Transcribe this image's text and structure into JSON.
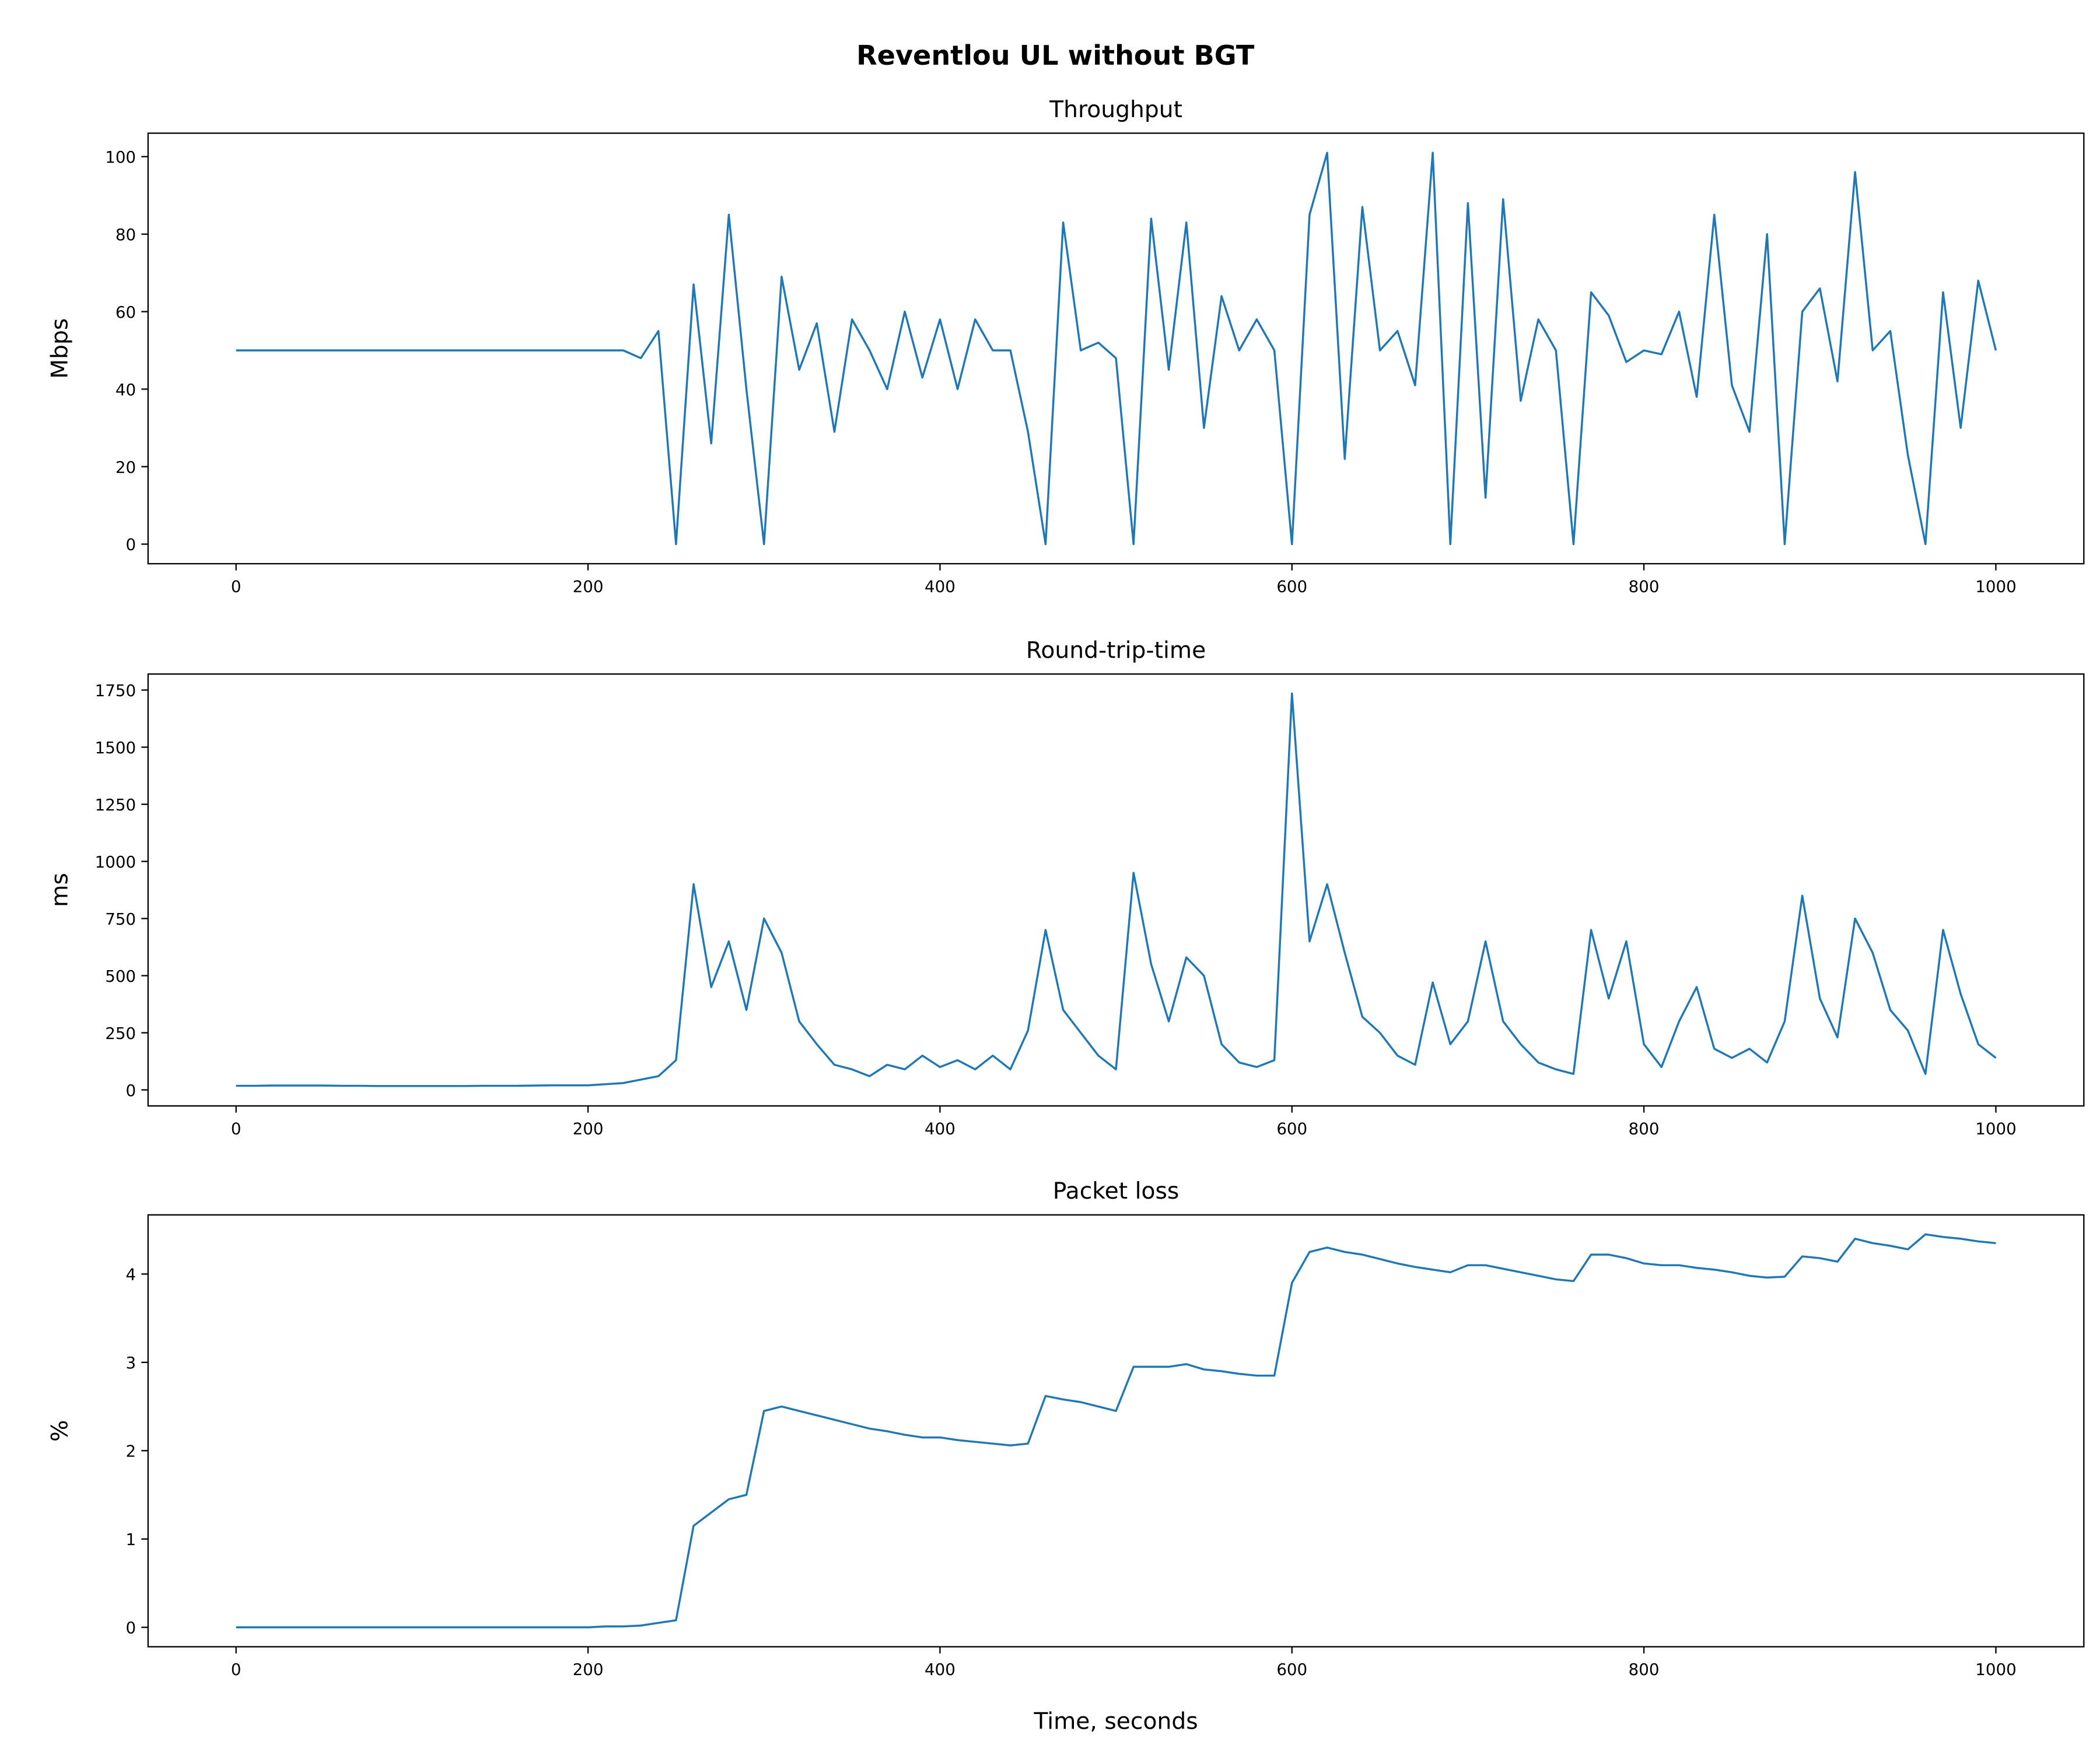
{
  "title": "Reventlou UL without BGT",
  "chart_data": [
    {
      "type": "line",
      "title": "Throughput",
      "ylabel": "Mbps",
      "x": [
        0,
        10,
        20,
        30,
        40,
        50,
        60,
        70,
        80,
        90,
        100,
        110,
        120,
        130,
        140,
        150,
        160,
        170,
        180,
        190,
        200,
        210,
        220,
        230,
        240,
        250,
        260,
        270,
        280,
        290,
        300,
        310,
        320,
        330,
        340,
        350,
        360,
        370,
        380,
        390,
        400,
        410,
        420,
        430,
        440,
        450,
        460,
        470,
        480,
        490,
        500,
        510,
        520,
        530,
        540,
        550,
        560,
        570,
        580,
        590,
        600,
        610,
        620,
        630,
        640,
        650,
        660,
        670,
        680,
        690,
        700,
        710,
        720,
        730,
        740,
        750,
        760,
        770,
        780,
        790,
        800,
        810,
        820,
        830,
        840,
        850,
        860,
        870,
        880,
        890,
        900,
        910,
        920,
        930,
        940,
        950,
        960,
        970,
        980,
        990,
        1000
      ],
      "series": [
        {
          "name": "Throughput",
          "color": "#1f77b4",
          "values": [
            50,
            50,
            50,
            50,
            50,
            50,
            50,
            50,
            50,
            50,
            50,
            50,
            50,
            50,
            50,
            50,
            50,
            50,
            50,
            50,
            50,
            50,
            50,
            48,
            55,
            0,
            67,
            26,
            85,
            40,
            0,
            69,
            45,
            57,
            29,
            58,
            50,
            40,
            60,
            43,
            58,
            40,
            58,
            50,
            50,
            29,
            0,
            83,
            50,
            52,
            48,
            0,
            84,
            45,
            83,
            30,
            64,
            50,
            58,
            50,
            0,
            85,
            101,
            22,
            87,
            50,
            55,
            41,
            101,
            0,
            88,
            12,
            89,
            37,
            58,
            50,
            0,
            65,
            59,
            47,
            50,
            49,
            60,
            38,
            85,
            41,
            29,
            80,
            0,
            60,
            66,
            42,
            96,
            50,
            55,
            23,
            0,
            65,
            30,
            68,
            50
          ]
        }
      ],
      "xlim": [
        -50,
        1050
      ],
      "ylim": [
        -5.05,
        106.05
      ],
      "xticks": [
        0,
        200,
        400,
        600,
        800,
        1000
      ],
      "yticks": [
        0,
        20,
        40,
        60,
        80,
        100
      ]
    },
    {
      "type": "line",
      "title": "Round-trip-time",
      "ylabel": "ms",
      "x": [
        0,
        10,
        20,
        30,
        40,
        50,
        60,
        70,
        80,
        90,
        100,
        110,
        120,
        130,
        140,
        150,
        160,
        170,
        180,
        190,
        200,
        210,
        220,
        230,
        240,
        250,
        260,
        270,
        280,
        290,
        300,
        310,
        320,
        330,
        340,
        350,
        360,
        370,
        380,
        390,
        400,
        410,
        420,
        430,
        440,
        450,
        460,
        470,
        480,
        490,
        500,
        510,
        520,
        530,
        540,
        550,
        560,
        570,
        580,
        590,
        600,
        610,
        620,
        630,
        640,
        650,
        660,
        670,
        680,
        690,
        700,
        710,
        720,
        730,
        740,
        750,
        760,
        770,
        780,
        790,
        800,
        810,
        820,
        830,
        840,
        850,
        860,
        870,
        880,
        890,
        900,
        910,
        920,
        930,
        940,
        950,
        960,
        970,
        980,
        990,
        1000
      ],
      "series": [
        {
          "name": "Round-trip-time",
          "color": "#1f77b4",
          "values": [
            18,
            18,
            19,
            19,
            19,
            19,
            18,
            18,
            17,
            17,
            17,
            17,
            17,
            17,
            18,
            18,
            18,
            19,
            20,
            20,
            20,
            25,
            30,
            45,
            60,
            130,
            900,
            450,
            650,
            350,
            750,
            600,
            300,
            200,
            110,
            90,
            60,
            110,
            90,
            150,
            100,
            130,
            90,
            150,
            90,
            260,
            700,
            350,
            250,
            150,
            90,
            950,
            550,
            300,
            580,
            500,
            200,
            120,
            100,
            130,
            1735,
            650,
            900,
            600,
            320,
            250,
            150,
            110,
            470,
            200,
            300,
            650,
            300,
            200,
            120,
            90,
            70,
            700,
            400,
            650,
            200,
            100,
            300,
            450,
            180,
            140,
            180,
            120,
            300,
            850,
            400,
            230,
            750,
            600,
            350,
            260,
            70,
            700,
            420,
            200,
            140
          ]
        }
      ],
      "xlim": [
        -50,
        1050
      ],
      "ylim": [
        -70,
        1820
      ],
      "xticks": [
        0,
        200,
        400,
        600,
        800,
        1000
      ],
      "yticks": [
        0,
        250,
        500,
        750,
        1000,
        1250,
        1500,
        1750
      ]
    },
    {
      "type": "line",
      "title": "Packet loss",
      "ylabel": "%",
      "xlabel": "Time, seconds",
      "x": [
        0,
        10,
        20,
        30,
        40,
        50,
        60,
        70,
        80,
        90,
        100,
        110,
        120,
        130,
        140,
        150,
        160,
        170,
        180,
        190,
        200,
        210,
        220,
        230,
        240,
        250,
        260,
        270,
        280,
        290,
        300,
        310,
        320,
        330,
        340,
        350,
        360,
        370,
        380,
        390,
        400,
        410,
        420,
        430,
        440,
        450,
        460,
        470,
        480,
        490,
        500,
        510,
        520,
        530,
        540,
        550,
        560,
        570,
        580,
        590,
        600,
        610,
        620,
        630,
        640,
        650,
        660,
        670,
        680,
        690,
        700,
        710,
        720,
        730,
        740,
        750,
        760,
        770,
        780,
        790,
        800,
        810,
        820,
        830,
        840,
        850,
        860,
        870,
        880,
        890,
        900,
        910,
        920,
        930,
        940,
        950,
        960,
        970,
        980,
        990,
        1000
      ],
      "series": [
        {
          "name": "Packet loss",
          "color": "#1f77b4",
          "values": [
            0,
            0,
            0,
            0,
            0,
            0,
            0,
            0,
            0,
            0,
            0,
            0,
            0,
            0,
            0,
            0,
            0,
            0,
            0,
            0,
            0,
            0.01,
            0.01,
            0.02,
            0.05,
            0.08,
            1.15,
            1.3,
            1.45,
            1.5,
            2.45,
            2.5,
            2.45,
            2.4,
            2.35,
            2.3,
            2.25,
            2.22,
            2.18,
            2.15,
            2.15,
            2.12,
            2.1,
            2.08,
            2.06,
            2.08,
            2.62,
            2.58,
            2.55,
            2.5,
            2.45,
            2.95,
            2.95,
            2.95,
            2.98,
            2.92,
            2.9,
            2.87,
            2.85,
            2.85,
            3.9,
            4.25,
            4.3,
            4.25,
            4.22,
            4.17,
            4.12,
            4.08,
            4.05,
            4.02,
            4.1,
            4.1,
            4.06,
            4.02,
            3.98,
            3.94,
            3.92,
            4.22,
            4.22,
            4.18,
            4.12,
            4.1,
            4.1,
            4.07,
            4.05,
            4.02,
            3.98,
            3.96,
            3.97,
            4.2,
            4.18,
            4.14,
            4.4,
            4.35,
            4.32,
            4.28,
            4.45,
            4.42,
            4.4,
            4.37,
            4.35
          ]
        }
      ],
      "xlim": [
        -50,
        1050
      ],
      "ylim": [
        -0.22,
        4.67
      ],
      "xticks": [
        0,
        200,
        400,
        600,
        800,
        1000
      ],
      "yticks": [
        0,
        1,
        2,
        3,
        4
      ]
    }
  ]
}
